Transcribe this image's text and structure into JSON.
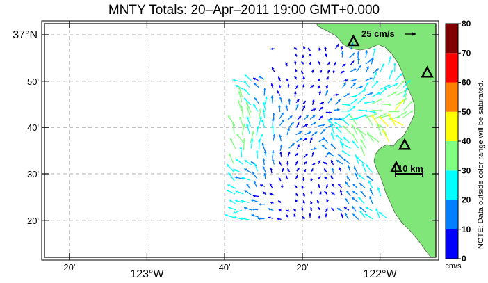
{
  "title": "MNTY Totals: 20–Apr–2011 19:00 GMT+0.000",
  "map": {
    "x_ticks": [
      {
        "label": "20'",
        "lon": -123.333
      },
      {
        "label": "123°W",
        "lon": -123.0
      },
      {
        "label": "40'",
        "lon": -122.667
      },
      {
        "label": "20'",
        "lon": -122.333
      },
      {
        "label": "122°W",
        "lon": -122.0
      }
    ],
    "y_ticks": [
      {
        "label": "37°N",
        "lat": 37.0
      },
      {
        "label": "50'",
        "lat": 36.833
      },
      {
        "label": "40'",
        "lat": 36.667
      },
      {
        "label": "30'",
        "lat": 36.5
      },
      {
        "label": "20'",
        "lat": 36.333
      }
    ],
    "lon_range": [
      -123.44,
      -121.76
    ],
    "lat_range": [
      36.2,
      37.04
    ],
    "colors": {
      "land": "#80e67a",
      "grid": "#999999",
      "frame": "#000000"
    },
    "reference_arrow": {
      "label": "25 cm/s",
      "speed": 25
    },
    "scale_bar": {
      "label": "10 km"
    },
    "stations": [
      {
        "name": "station-1",
        "lon": -122.114,
        "lat": 36.975
      },
      {
        "name": "station-2",
        "lon": -121.797,
        "lat": 36.862
      },
      {
        "name": "station-3",
        "lon": -121.894,
        "lat": 36.602
      },
      {
        "name": "station-4",
        "lon": -121.93,
        "lat": 36.521
      }
    ]
  },
  "colorbar": {
    "ticks": [
      "0",
      "10",
      "20",
      "30",
      "40",
      "50",
      "60",
      "70",
      "80"
    ],
    "colors": [
      "#0000ff",
      "#0080ff",
      "#00ffff",
      "#80ff80",
      "#ffff00",
      "#ff8000",
      "#ff0000",
      "#800000"
    ],
    "unit": "cm/s",
    "note": "NOTE: Data outside color range will be saturated."
  }
}
